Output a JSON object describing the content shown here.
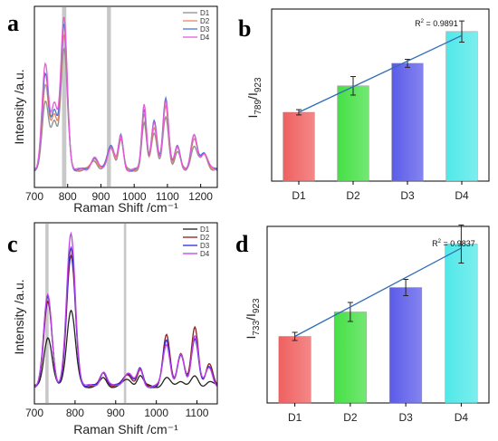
{
  "chart_data": [
    {
      "panel": "a",
      "type": "line",
      "xlabel": "Raman Shift /cm⁻¹",
      "ylabel": "Intensity /a.u.",
      "xlim": [
        700,
        1250
      ],
      "xticks": [
        "700",
        "800",
        "900",
        "1000",
        "1100",
        "1200"
      ],
      "highlight_bands": [
        [
          783,
          796
        ],
        [
          918,
          930
        ]
      ],
      "peaks": [
        {
          "x": 733,
          "heights": [
            0.45,
            0.55,
            0.62,
            0.69
          ]
        },
        {
          "x": 760,
          "heights": [
            0.3,
            0.35,
            0.38,
            0.42
          ]
        },
        {
          "x": 789,
          "heights": [
            0.8,
            0.88,
            0.95,
            1.0
          ]
        },
        {
          "x": 880,
          "heights": [
            0.06,
            0.07,
            0.08,
            0.08
          ]
        },
        {
          "x": 930,
          "heights": [
            0.14,
            0.16,
            0.17,
            0.15
          ]
        },
        {
          "x": 960,
          "heights": [
            0.2,
            0.21,
            0.22,
            0.22
          ]
        },
        {
          "x": 1030,
          "heights": [
            0.3,
            0.36,
            0.4,
            0.44
          ]
        },
        {
          "x": 1060,
          "heights": [
            0.25,
            0.28,
            0.32,
            0.3
          ]
        },
        {
          "x": 1095,
          "heights": [
            0.34,
            0.42,
            0.48,
            0.46
          ]
        },
        {
          "x": 1130,
          "heights": [
            0.12,
            0.14,
            0.15,
            0.15
          ]
        },
        {
          "x": 1180,
          "heights": [
            0.16,
            0.2,
            0.22,
            0.22
          ]
        },
        {
          "x": 1210,
          "heights": [
            0.1,
            0.11,
            0.12,
            0.11
          ]
        }
      ],
      "series": [
        {
          "name": "D1",
          "color": "#8f8f8f"
        },
        {
          "name": "D2",
          "color": "#e8875f"
        },
        {
          "name": "D3",
          "color": "#4a74d8"
        },
        {
          "name": "D4",
          "color": "#e85bd8"
        }
      ],
      "legend_position": "top-right"
    },
    {
      "panel": "b",
      "type": "bar",
      "ylabel_main": "I",
      "ylabel_sub1": "789",
      "ylabel_mid": "/I",
      "ylabel_sub2": "923",
      "categories": [
        "D1",
        "D2",
        "D3",
        "D4"
      ],
      "values": [
        0.52,
        0.72,
        0.89,
        1.13
      ],
      "errors": [
        0.02,
        0.07,
        0.03,
        0.08
      ],
      "colors": [
        "#f06060",
        "#45e045",
        "#5b5bea",
        "#50e8e8"
      ],
      "ylim": [
        0,
        1.3
      ],
      "fit_line": {
        "start": 0.52,
        "end": 1.1
      },
      "r2_base": "R",
      "r2_sup": "2",
      "r2_text": " = 0.9891"
    },
    {
      "panel": "c",
      "type": "line",
      "xlabel": "Raman Shift /cm⁻¹",
      "ylabel": "Intensity /a.u.",
      "xlim": [
        700,
        1150
      ],
      "xticks": [
        "700",
        "800",
        "900",
        "1000",
        "1100"
      ],
      "highlight_bands": [
        [
          727,
          735
        ],
        [
          920,
          926
        ]
      ],
      "peaks": [
        {
          "x": 733,
          "heights": [
            0.32,
            0.55,
            0.58,
            0.6
          ]
        },
        {
          "x": 790,
          "heights": [
            0.5,
            0.85,
            0.9,
            1.0
          ]
        },
        {
          "x": 870,
          "heights": [
            0.05,
            0.09,
            0.1,
            0.1
          ]
        },
        {
          "x": 930,
          "heights": [
            0.04,
            0.08,
            0.09,
            0.09
          ]
        },
        {
          "x": 960,
          "heights": [
            0.07,
            0.1,
            0.11,
            0.11
          ]
        },
        {
          "x": 1025,
          "heights": [
            0.05,
            0.33,
            0.3,
            0.28
          ]
        },
        {
          "x": 1060,
          "heights": [
            0.04,
            0.22,
            0.2,
            0.2
          ]
        },
        {
          "x": 1095,
          "heights": [
            0.06,
            0.39,
            0.32,
            0.34
          ]
        },
        {
          "x": 1130,
          "heights": [
            0.03,
            0.14,
            0.12,
            0.12
          ]
        }
      ],
      "series": [
        {
          "name": "D1",
          "color": "#222222"
        },
        {
          "name": "D2",
          "color": "#8b1c1c"
        },
        {
          "name": "D3",
          "color": "#2b2bd8"
        },
        {
          "name": "D4",
          "color": "#c040e8"
        }
      ],
      "legend_position": "top-right"
    },
    {
      "panel": "d",
      "type": "bar",
      "ylabel_main": "I",
      "ylabel_sub1": "733",
      "ylabel_mid": "/I",
      "ylabel_sub2": "923",
      "categories": [
        "D1",
        "D2",
        "D3",
        "D4"
      ],
      "values": [
        0.49,
        0.67,
        0.85,
        1.17
      ],
      "errors": [
        0.03,
        0.07,
        0.06,
        0.14
      ],
      "colors": [
        "#f06060",
        "#45e045",
        "#5b5bea",
        "#50e8e8"
      ],
      "ylim": [
        0,
        1.3
      ],
      "fit_line": {
        "start": 0.49,
        "end": 1.14
      },
      "r2_base": "R",
      "r2_sup": "2",
      "r2_text": " = 0.9837"
    }
  ]
}
